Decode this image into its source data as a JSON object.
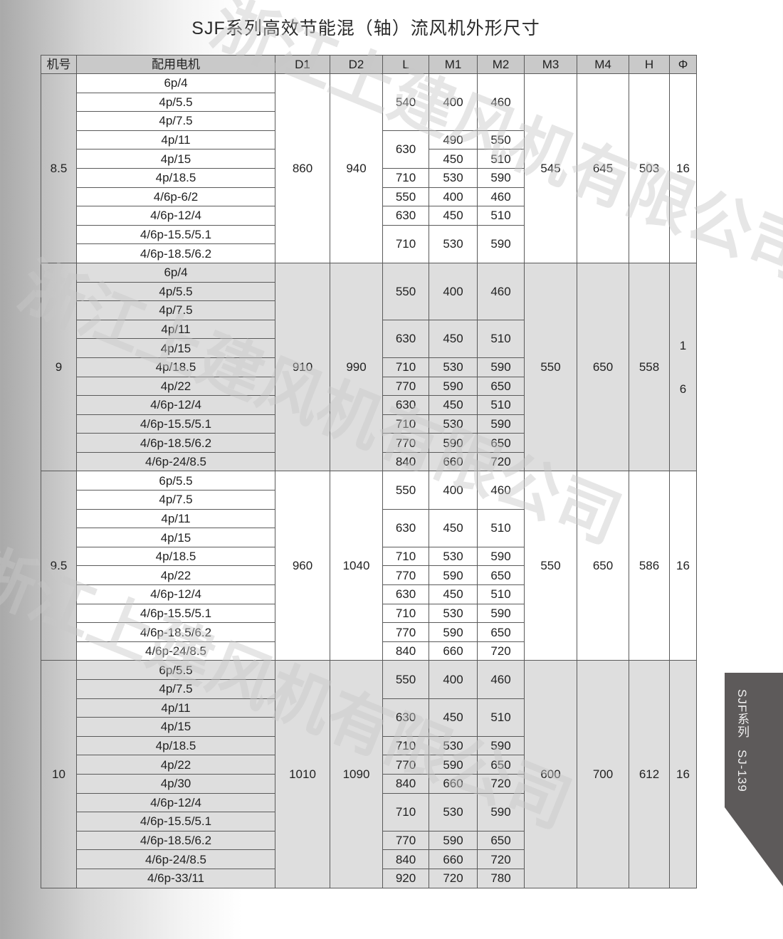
{
  "title": "SJF系列高效节能混（轴）流风机外形尺寸",
  "watermark": "浙江上建风机有限公司",
  "side_tab": "SJF系列  SJ-139",
  "colors": {
    "header_bg": "#c9c9c9",
    "gray_group_bg": "#dedede",
    "tab_bg": "#5d5a5a"
  },
  "headers": [
    "机号",
    "配用电机",
    "D1",
    "D2",
    "L",
    "M1",
    "M2",
    "M3",
    "M4",
    "H",
    "Φ"
  ],
  "groups": [
    {
      "model": "8.5",
      "d1": "860",
      "d2": "940",
      "m3": "545",
      "m4": "645",
      "h": "503",
      "phi": [
        "16"
      ],
      "shade": "white",
      "motors": [
        "6p/4",
        "4p/5.5",
        "4p/7.5",
        "4p/11",
        "4p/15",
        "4p/18.5",
        "4/6p-6/2",
        "4/6p-12/4",
        "4/6p-15.5/5.1",
        "4/6p-18.5/6.2"
      ],
      "segments": [
        {
          "rows": 3,
          "L": "540",
          "M1": "400",
          "M2": "460"
        },
        {
          "rows": 2,
          "L": "630",
          "M1": [
            "490",
            "450"
          ],
          "M2": [
            "550",
            "510"
          ]
        },
        {
          "rows": 1,
          "L": "710",
          "M1": "530",
          "M2": "590"
        },
        {
          "rows": 1,
          "L": "550",
          "M1": "400",
          "M2": "460"
        },
        {
          "rows": 1,
          "L": "630",
          "M1": "450",
          "M2": "510"
        },
        {
          "rows": 2,
          "L": "710",
          "M1": "530",
          "M2": "590"
        }
      ]
    },
    {
      "model": "9",
      "d1": "910",
      "d2": "990",
      "m3": "550",
      "m4": "650",
      "h": "558",
      "phi": [
        "1",
        "6"
      ],
      "shade": "gray",
      "motors": [
        "6p/4",
        "4p/5.5",
        "4p/7.5",
        "4p/11",
        "4p/15",
        "4p/18.5",
        "4p/22",
        "4/6p-12/4",
        "4/6p-15.5/5.1",
        "4/6p-18.5/6.2",
        "4/6p-24/8.5"
      ],
      "segments": [
        {
          "rows": 3,
          "L": "550",
          "M1": "400",
          "M2": "460"
        },
        {
          "rows": 2,
          "L": "630",
          "M1": "450",
          "M2": "510"
        },
        {
          "rows": 1,
          "L": "710",
          "M1": "530",
          "M2": "590"
        },
        {
          "rows": 1,
          "L": "770",
          "M1": "590",
          "M2": "650"
        },
        {
          "rows": 1,
          "L": "630",
          "M1": "450",
          "M2": "510"
        },
        {
          "rows": 1,
          "L": "710",
          "M1": "530",
          "M2": "590"
        },
        {
          "rows": 1,
          "L": "770",
          "M1": "590",
          "M2": "650"
        },
        {
          "rows": 1,
          "L": "840",
          "M1": "660",
          "M2": "720"
        }
      ]
    },
    {
      "model": "9.5",
      "d1": "960",
      "d2": "1040",
      "m3": "550",
      "m4": "650",
      "h": "586",
      "phi": [
        "16"
      ],
      "shade": "white",
      "motors": [
        "6p/5.5",
        "4p/7.5",
        "4p/11",
        "4p/15",
        "4p/18.5",
        "4p/22",
        "4/6p-12/4",
        "4/6p-15.5/5.1",
        "4/6p-18.5/6.2",
        "4/6p-24/8.5"
      ],
      "segments": [
        {
          "rows": 2,
          "L": "550",
          "M1": "400",
          "M2": "460"
        },
        {
          "rows": 2,
          "L": "630",
          "M1": "450",
          "M2": "510"
        },
        {
          "rows": 1,
          "L": "710",
          "M1": "530",
          "M2": "590"
        },
        {
          "rows": 1,
          "L": "770",
          "M1": "590",
          "M2": "650"
        },
        {
          "rows": 1,
          "L": "630",
          "M1": "450",
          "M2": "510"
        },
        {
          "rows": 1,
          "L": "710",
          "M1": "530",
          "M2": "590"
        },
        {
          "rows": 1,
          "L": "770",
          "M1": "590",
          "M2": "650"
        },
        {
          "rows": 1,
          "L": "840",
          "M1": "660",
          "M2": "720"
        }
      ]
    },
    {
      "model": "10",
      "d1": "1010",
      "d2": "1090",
      "m3": "600",
      "m4": "700",
      "h": "612",
      "phi": [
        "16"
      ],
      "shade": "gray",
      "motors": [
        "6p/5.5",
        "4p/7.5",
        "4p/11",
        "4p/15",
        "4p/18.5",
        "4p/22",
        "4p/30",
        "4/6p-12/4",
        "4/6p-15.5/5.1",
        "4/6p-18.5/6.2",
        "4/6p-24/8.5",
        "4/6p-33/11"
      ],
      "segments": [
        {
          "rows": 2,
          "L": "550",
          "M1": "400",
          "M2": "460"
        },
        {
          "rows": 2,
          "L": "630",
          "M1": "450",
          "M2": "510"
        },
        {
          "rows": 1,
          "L": "710",
          "M1": "530",
          "M2": "590"
        },
        {
          "rows": 1,
          "L": "770",
          "M1": "590",
          "M2": "650"
        },
        {
          "rows": 1,
          "L": "840",
          "M1": "660",
          "M2": "720"
        },
        {
          "rows": 2,
          "L": "710",
          "M1": "530",
          "M2": "590"
        },
        {
          "rows": 1,
          "L": "770",
          "M1": "590",
          "M2": "650"
        },
        {
          "rows": 1,
          "L": "840",
          "M1": "660",
          "M2": "720"
        },
        {
          "rows": 1,
          "L": "920",
          "M1": "720",
          "M2": "780"
        }
      ]
    }
  ]
}
